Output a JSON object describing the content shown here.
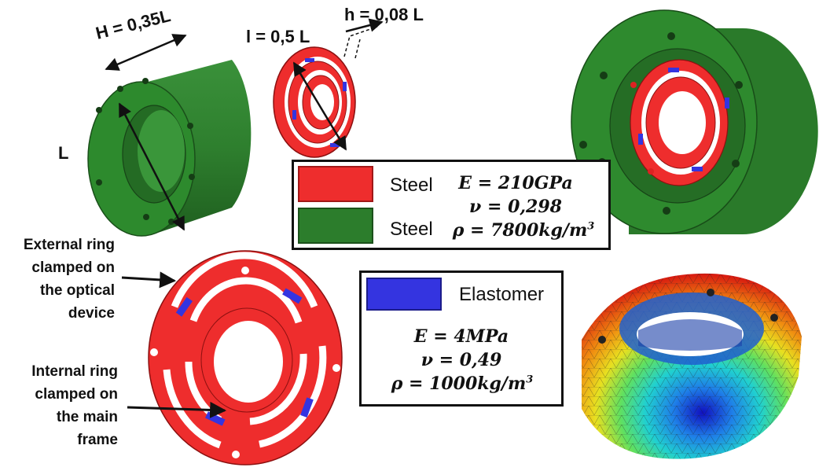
{
  "dimensions": {
    "h_label": "H = 0,35L",
    "l_label": "L",
    "i_label": "l = 0,5 L",
    "t_label": "h = 0,08 L"
  },
  "callouts": {
    "external": [
      "External ring",
      "clamped on",
      "the optical",
      "device"
    ],
    "internal": [
      "Internal ring",
      "clamped on",
      "the main",
      "frame"
    ]
  },
  "legend_steel": {
    "red_name": "Steel",
    "green_name": "Steel",
    "eq_e": "E = 210GPa",
    "eq_nu": "ν = 0,298",
    "eq_rho_base": "ρ = 7800kg/m",
    "eq_rho_exp": "3"
  },
  "legend_elastomer": {
    "name": "Elastomer",
    "eq_e": "E = 4MPa",
    "eq_nu": "ν = 0,49",
    "eq_rho_base": "ρ = 1000kg/m",
    "eq_rho_exp": "3"
  },
  "colors": {
    "steel_red": "#ee2d2d",
    "steel_green": "#2c7d2c",
    "elastomer_blue": "#3434e0"
  }
}
